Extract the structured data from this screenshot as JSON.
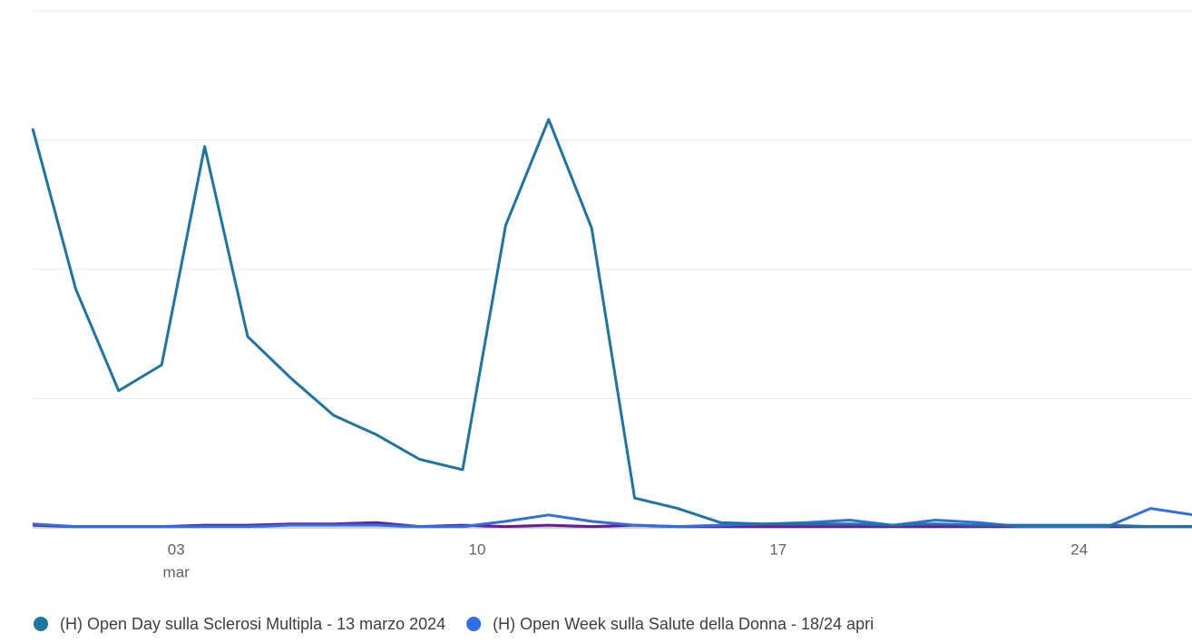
{
  "chart_data": {
    "type": "line",
    "categories": [
      null,
      null,
      null,
      "03",
      null,
      null,
      null,
      null,
      null,
      null,
      "10",
      null,
      null,
      null,
      null,
      null,
      null,
      "17",
      null,
      null,
      null,
      null,
      null,
      null,
      "24",
      null,
      null,
      null
    ],
    "month_label": "mar",
    "month_label_index": 3,
    "series": [
      {
        "name": "(H) Open Day sulla Sclerosi Multipla - 13 marzo 2024",
        "color": "#1b76a3",
        "values": [
          3.09,
          1.85,
          1.06,
          1.26,
          2.95,
          1.48,
          1.16,
          0.87,
          0.72,
          0.53,
          0.45,
          2.34,
          3.16,
          2.32,
          0.23,
          0.15,
          0.04,
          0.03,
          0.03,
          0.03,
          0.02,
          0.03,
          0.02,
          0.02,
          0.02,
          0.02,
          0.01,
          0.01
        ]
      },
      {
        "name": "(H) Open Week sulla Salute della Donna - 18/24 apri",
        "color": "#2f6fe4",
        "values": [
          0.03,
          0.01,
          0.01,
          0.01,
          0.01,
          0.01,
          0.02,
          0.02,
          0.02,
          0.01,
          0.01,
          0.05,
          0.1,
          0.05,
          0.02,
          0.01,
          0.02,
          0.03,
          0.04,
          0.06,
          0.02,
          0.06,
          0.04,
          0.01,
          0.01,
          0.01,
          0.15,
          0.1
        ]
      },
      {
        "color": "#6a1b9a",
        "values": [
          0.02,
          0.01,
          0.01,
          0.01,
          0.02,
          0.02,
          0.03,
          0.03,
          0.04,
          0.01,
          0.02,
          0.01,
          0.02,
          0.01,
          0.02,
          0.01,
          0.01,
          0.01,
          0.01,
          0.01,
          0.01,
          0.01,
          0.01,
          0.01,
          0.01,
          0.01,
          0.01,
          0.01
        ]
      }
    ],
    "ylim": [
      0,
      4
    ],
    "yticks": [
      0,
      1,
      2,
      3,
      4
    ],
    "grid": true
  }
}
